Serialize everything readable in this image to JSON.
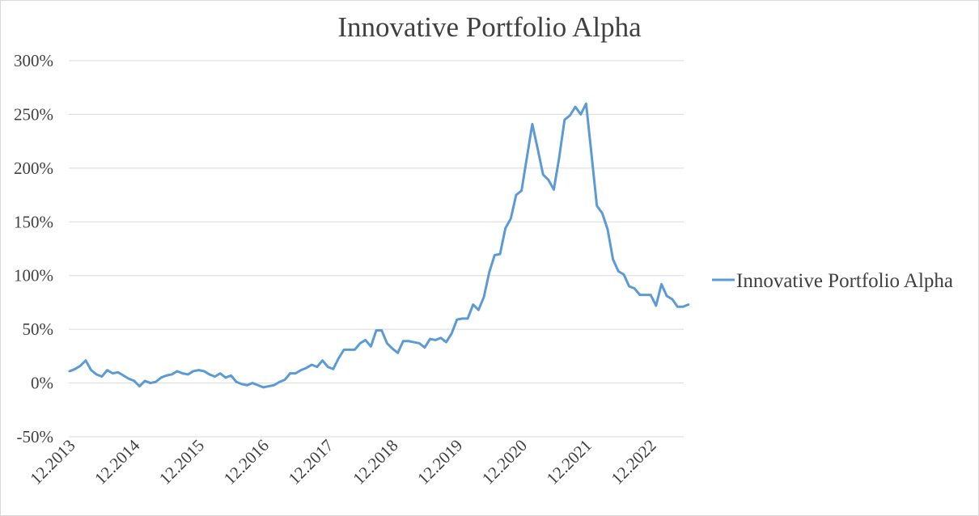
{
  "chart_data": {
    "type": "line",
    "title": "Innovative Portfolio Alpha",
    "xlabel": "",
    "ylabel": "",
    "ylim": [
      -50,
      300
    ],
    "y_ticks": [
      -50,
      0,
      50,
      100,
      150,
      200,
      250,
      300
    ],
    "y_tick_labels": [
      "-50%",
      "0%",
      "50%",
      "100%",
      "150%",
      "200%",
      "250%",
      "300%"
    ],
    "x_tick_labels": [
      "12.2013",
      "12.2014",
      "12.2015",
      "12.2016",
      "12.2017",
      "12.2018",
      "12.2019",
      "12.2020",
      "12.2021",
      "12.2022"
    ],
    "x_unit": "months since 12.2013",
    "grid": true,
    "legend_position": "right",
    "series": [
      {
        "name": "Innovative Portfolio Alpha",
        "color": "#5b9bd5",
        "x": [
          0,
          1,
          2,
          3,
          4,
          5,
          6,
          7,
          8,
          9,
          10,
          11,
          12,
          13,
          14,
          15,
          16,
          17,
          18,
          19,
          20,
          21,
          22,
          23,
          24,
          25,
          26,
          27,
          28,
          29,
          30,
          31,
          32,
          33,
          34,
          35,
          36,
          37,
          38,
          39,
          40,
          41,
          42,
          43,
          44,
          45,
          46,
          47,
          48,
          49,
          50,
          51,
          52,
          53,
          54,
          55,
          56,
          57,
          58,
          59,
          60,
          61,
          62,
          63,
          64,
          65,
          66,
          67,
          68,
          69,
          70,
          71,
          72,
          73,
          74,
          75,
          76,
          77,
          78,
          79,
          80,
          81,
          82,
          83,
          84,
          85,
          86,
          87,
          88,
          89,
          90,
          91,
          92,
          93,
          94,
          95,
          96,
          97,
          98,
          99,
          100,
          101,
          102,
          103,
          104,
          105,
          106,
          107,
          108,
          109,
          110,
          111,
          112,
          113,
          114,
          115
        ],
        "values": [
          11,
          13,
          16,
          21,
          12,
          8,
          6,
          12,
          9,
          10,
          7,
          4,
          2,
          -3,
          2,
          0,
          1,
          5,
          7,
          8,
          11,
          9,
          8,
          11,
          12,
          11,
          8,
          6,
          9,
          5,
          7,
          1,
          -1,
          -2,
          0,
          -2,
          -4,
          -3,
          -2,
          1,
          3,
          9,
          9,
          12,
          14,
          17,
          15,
          21,
          15,
          13,
          23,
          31,
          31,
          31,
          37,
          40,
          34,
          49,
          49,
          37,
          32,
          28,
          39,
          39,
          38,
          37,
          33,
          41,
          40,
          42,
          38,
          46,
          59,
          60,
          60,
          73,
          68,
          80,
          103,
          119,
          120,
          144,
          153,
          175,
          179,
          210,
          241,
          218,
          194,
          189,
          180,
          210,
          245,
          249,
          257,
          250,
          260,
          213,
          165,
          158,
          143,
          115,
          104,
          101,
          90,
          88,
          82,
          82,
          82,
          72,
          92,
          81,
          78,
          71,
          71,
          73
        ]
      }
    ]
  }
}
